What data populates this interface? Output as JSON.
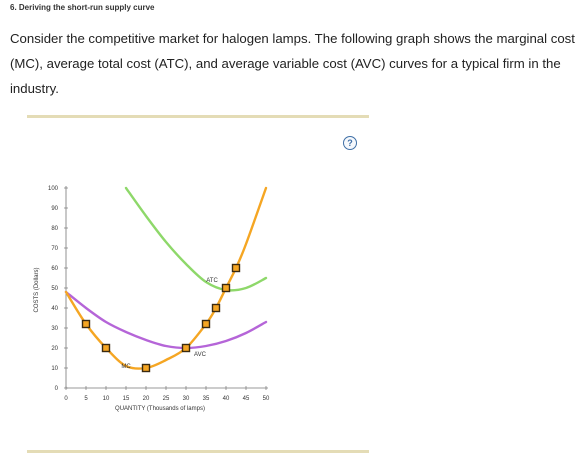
{
  "header": {
    "title": "6. Deriving the short-run supply curve"
  },
  "question": {
    "text": "Consider the competitive market for halogen lamps. The following graph shows the marginal cost (MC), average total cost (ATC), and average variable cost (AVC) curves for a typical firm in the industry."
  },
  "help": {
    "glyph": "?"
  },
  "colors": {
    "mc": "#f5a623",
    "atc": "#8ed86a",
    "avc": "#b565d8",
    "marker_fill": "#f5a623",
    "marker_border": "#3a2a10",
    "rule": "#e4dcb6",
    "help": "#3f6fa6"
  },
  "chart_data": {
    "type": "line",
    "xlabel": "QUANTITY (Thousands of lamps)",
    "ylabel": "COSTS (Dollars)",
    "xlim": [
      0,
      50
    ],
    "ylim": [
      0,
      100
    ],
    "x_ticks": [
      0,
      5,
      10,
      15,
      20,
      25,
      30,
      35,
      40,
      45,
      50
    ],
    "y_ticks": [
      0,
      10,
      20,
      30,
      40,
      50,
      60,
      70,
      80,
      90,
      100
    ],
    "series": [
      {
        "name": "MC",
        "color_key": "mc",
        "label_at": [
          15,
          10
        ],
        "points": [
          [
            0,
            48
          ],
          [
            5,
            32
          ],
          [
            10,
            20
          ],
          [
            15,
            11
          ],
          [
            20,
            10
          ],
          [
            25,
            14
          ],
          [
            30,
            20
          ],
          [
            35,
            32
          ],
          [
            37.5,
            40
          ],
          [
            40,
            50
          ],
          [
            42.5,
            60
          ],
          [
            45,
            72
          ],
          [
            50,
            100
          ]
        ]
      },
      {
        "name": "ATC",
        "color_key": "atc",
        "label_at": [
          36.5,
          53
        ],
        "points": [
          [
            15,
            100
          ],
          [
            20,
            86
          ],
          [
            25,
            73
          ],
          [
            30,
            62
          ],
          [
            35,
            53
          ],
          [
            40,
            49
          ],
          [
            45,
            50
          ],
          [
            50,
            55
          ]
        ]
      },
      {
        "name": "AVC",
        "color_key": "avc",
        "label_at": [
          33.5,
          16
        ],
        "points": [
          [
            0,
            48
          ],
          [
            5,
            40
          ],
          [
            10,
            33
          ],
          [
            15,
            28
          ],
          [
            20,
            24
          ],
          [
            25,
            21
          ],
          [
            30,
            20
          ],
          [
            35,
            21
          ],
          [
            40,
            23.5
          ],
          [
            45,
            27.5
          ],
          [
            50,
            33
          ]
        ]
      }
    ],
    "markers": [
      {
        "x": 5,
        "y": 32
      },
      {
        "x": 10,
        "y": 20
      },
      {
        "x": 20,
        "y": 10
      },
      {
        "x": 30,
        "y": 20
      },
      {
        "x": 35,
        "y": 32
      },
      {
        "x": 37.5,
        "y": 40
      },
      {
        "x": 40,
        "y": 50
      },
      {
        "x": 42.5,
        "y": 60
      }
    ]
  }
}
